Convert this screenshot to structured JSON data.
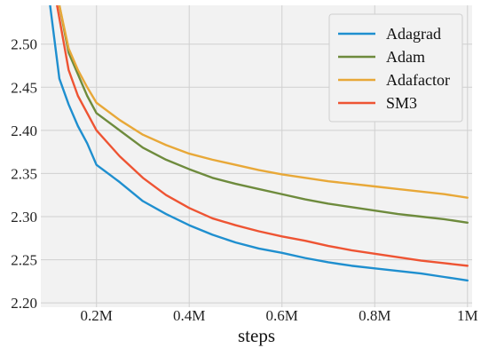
{
  "chart_data": {
    "type": "line",
    "title": "",
    "xlabel": "steps",
    "ylabel": "",
    "xlim": [
      0.08,
      1.01
    ],
    "ylim": [
      2.195,
      2.545
    ],
    "xticks": [
      0.2,
      0.4,
      0.6,
      0.8,
      1.0
    ],
    "xtick_labels": [
      "0.2M",
      "0.4M",
      "0.6M",
      "0.8M",
      "1M"
    ],
    "yticks": [
      2.2,
      2.25,
      2.3,
      2.35,
      2.4,
      2.45,
      2.5
    ],
    "ytick_labels": [
      "2.20",
      "2.25",
      "2.30",
      "2.35",
      "2.40",
      "2.45",
      "2.50"
    ],
    "grid": true,
    "legend_position": "top-right",
    "series": [
      {
        "name": "Adagrad",
        "color": "#1f8fcf",
        "x": [
          0.1,
          0.12,
          0.14,
          0.16,
          0.18,
          0.2,
          0.25,
          0.3,
          0.35,
          0.4,
          0.45,
          0.5,
          0.55,
          0.6,
          0.65,
          0.7,
          0.75,
          0.8,
          0.85,
          0.9,
          0.95,
          1.0
        ],
        "y": [
          2.545,
          2.46,
          2.43,
          2.405,
          2.385,
          2.36,
          2.34,
          2.318,
          2.303,
          2.29,
          2.279,
          2.27,
          2.263,
          2.258,
          2.252,
          2.247,
          2.243,
          2.24,
          2.237,
          2.234,
          2.23,
          2.226
        ]
      },
      {
        "name": "Adam",
        "color": "#6e8b3d",
        "x": [
          0.12,
          0.14,
          0.16,
          0.18,
          0.2,
          0.25,
          0.3,
          0.35,
          0.4,
          0.45,
          0.5,
          0.55,
          0.6,
          0.65,
          0.7,
          0.75,
          0.8,
          0.85,
          0.9,
          0.95,
          1.0
        ],
        "y": [
          2.545,
          2.49,
          2.465,
          2.44,
          2.42,
          2.4,
          2.38,
          2.366,
          2.355,
          2.345,
          2.338,
          2.332,
          2.326,
          2.32,
          2.315,
          2.311,
          2.307,
          2.303,
          2.3,
          2.297,
          2.293
        ]
      },
      {
        "name": "Adafactor",
        "color": "#e8a838",
        "x": [
          0.12,
          0.14,
          0.16,
          0.18,
          0.2,
          0.25,
          0.3,
          0.35,
          0.4,
          0.45,
          0.5,
          0.55,
          0.6,
          0.65,
          0.7,
          0.75,
          0.8,
          0.85,
          0.9,
          0.95,
          1.0
        ],
        "y": [
          2.545,
          2.495,
          2.47,
          2.45,
          2.432,
          2.412,
          2.395,
          2.383,
          2.373,
          2.366,
          2.36,
          2.354,
          2.349,
          2.345,
          2.341,
          2.338,
          2.335,
          2.332,
          2.329,
          2.326,
          2.322
        ]
      },
      {
        "name": "SM3",
        "color": "#ee5433",
        "x": [
          0.115,
          0.14,
          0.16,
          0.18,
          0.2,
          0.25,
          0.3,
          0.35,
          0.4,
          0.45,
          0.5,
          0.55,
          0.6,
          0.65,
          0.7,
          0.75,
          0.8,
          0.85,
          0.9,
          0.95,
          1.0
        ],
        "y": [
          2.545,
          2.47,
          2.44,
          2.42,
          2.4,
          2.37,
          2.345,
          2.325,
          2.31,
          2.298,
          2.29,
          2.283,
          2.277,
          2.272,
          2.266,
          2.261,
          2.257,
          2.253,
          2.249,
          2.246,
          2.243
        ]
      }
    ]
  }
}
